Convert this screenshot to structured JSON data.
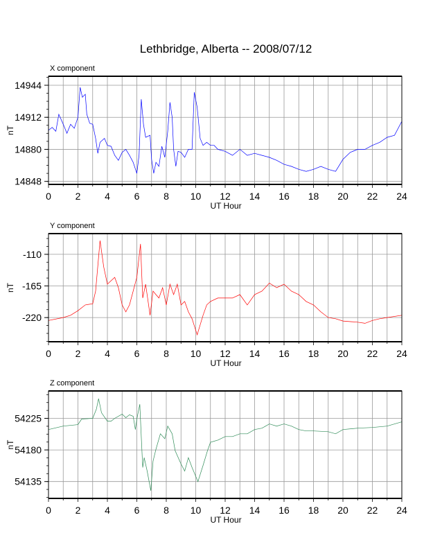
{
  "title": "Lethbridge, Alberta -- 2008/07/12",
  "chart_data": [
    {
      "type": "line",
      "title": "X component",
      "xlabel": "UT Hour",
      "ylabel": "nT",
      "xlim": [
        0,
        24
      ],
      "ylim": [
        14845,
        14953
      ],
      "xticks": [
        0,
        2,
        4,
        6,
        8,
        10,
        12,
        14,
        16,
        18,
        20,
        22,
        24
      ],
      "yticks": [
        14848,
        14880,
        14912,
        14944
      ],
      "grid": true,
      "color": "#0000ff",
      "x": [
        0,
        0.25,
        0.5,
        0.7,
        1.0,
        1.25,
        1.5,
        1.75,
        2.0,
        2.15,
        2.3,
        2.5,
        2.6,
        2.8,
        3.0,
        3.2,
        3.35,
        3.5,
        3.8,
        4.0,
        4.25,
        4.5,
        4.75,
        5.0,
        5.25,
        5.5,
        5.75,
        6.0,
        6.15,
        6.3,
        6.45,
        6.6,
        6.9,
        7.0,
        7.15,
        7.3,
        7.5,
        7.7,
        7.9,
        8.1,
        8.25,
        8.4,
        8.5,
        8.65,
        8.8,
        9.0,
        9.25,
        9.5,
        9.75,
        9.9,
        10.1,
        10.3,
        10.5,
        10.75,
        11.0,
        11.25,
        11.5,
        12,
        12.5,
        13,
        13.5,
        14,
        14.5,
        15,
        15.5,
        16,
        16.5,
        17,
        17.5,
        18,
        18.5,
        19,
        19.5,
        20,
        20.5,
        21,
        21.5,
        22,
        22.5,
        23,
        23.5,
        24
      ],
      "y": [
        14899,
        14902,
        14898,
        14915,
        14905,
        14896,
        14905,
        14901,
        14912,
        14942,
        14932,
        14935,
        14915,
        14906,
        14905,
        14891,
        14876,
        14887,
        14891,
        14884,
        14883,
        14874,
        14869,
        14877,
        14880,
        14874,
        14867,
        14856,
        14874,
        14930,
        14905,
        14892,
        14894,
        14870,
        14856,
        14867,
        14863,
        14883,
        14872,
        14898,
        14927,
        14912,
        14880,
        14863,
        14878,
        14877,
        14872,
        14880,
        14880,
        14937,
        14922,
        14891,
        14884,
        14887,
        14884,
        14884,
        14880,
        14878,
        14874,
        14880,
        14874,
        14876,
        14874,
        14872,
        14869,
        14865,
        14863,
        14860,
        14858,
        14860,
        14863,
        14860,
        14858,
        14870,
        14877,
        14880,
        14880,
        14884,
        14887,
        14892,
        14894,
        14908
      ]
    },
    {
      "type": "line",
      "title": "Y component",
      "xlabel": "UT Hour",
      "ylabel": "nT",
      "xlim": [
        0,
        24
      ],
      "ylim": [
        -262,
        -74
      ],
      "xticks": [
        0,
        2,
        4,
        6,
        8,
        10,
        12,
        14,
        16,
        18,
        20,
        22,
        24
      ],
      "yticks": [
        -220,
        -165,
        -110
      ],
      "grid": true,
      "color": "#ff0000",
      "x": [
        0,
        1,
        1.5,
        2,
        2.5,
        3.0,
        3.2,
        3.5,
        3.75,
        4.0,
        4.25,
        4.5,
        4.75,
        5.0,
        5.25,
        5.5,
        5.75,
        6.0,
        6.25,
        6.4,
        6.6,
        6.9,
        7.1,
        7.3,
        7.5,
        7.75,
        8.0,
        8.25,
        8.5,
        8.75,
        9.0,
        9.25,
        9.5,
        9.75,
        10.1,
        10.5,
        10.75,
        11.0,
        11.5,
        12,
        12.5,
        13,
        13.5,
        14,
        14.5,
        15,
        15.5,
        16,
        16.5,
        17,
        17.5,
        18,
        18.5,
        19,
        19.5,
        20,
        21,
        21.5,
        22,
        22.5,
        23,
        24
      ],
      "y": [
        -225,
        -220,
        -216,
        -208,
        -198,
        -196,
        -174,
        -86,
        -132,
        -162,
        -156,
        -150,
        -168,
        -198,
        -210,
        -198,
        -174,
        -150,
        -92,
        -186,
        -162,
        -216,
        -174,
        -180,
        -186,
        -168,
        -198,
        -162,
        -180,
        -162,
        -198,
        -192,
        -210,
        -222,
        -250,
        -216,
        -198,
        -192,
        -186,
        -186,
        -186,
        -180,
        -198,
        -180,
        -174,
        -160,
        -168,
        -162,
        -174,
        -180,
        -192,
        -198,
        -210,
        -220,
        -222,
        -226,
        -228,
        -230,
        -225,
        -222,
        -220,
        -216
      ]
    },
    {
      "type": "line",
      "title": "Z component",
      "xlabel": "UT Hour",
      "ylabel": "nT",
      "xlim": [
        0,
        24
      ],
      "ylim": [
        54111,
        54264
      ],
      "xticks": [
        0,
        2,
        4,
        6,
        8,
        10,
        12,
        14,
        16,
        18,
        20,
        22,
        24
      ],
      "yticks": [
        54135,
        54180,
        54225
      ],
      "grid": true,
      "color": "#2e8b57",
      "x": [
        0,
        1,
        2,
        2.25,
        3.0,
        3.25,
        3.4,
        3.6,
        4.0,
        4.25,
        4.5,
        5.0,
        5.25,
        5.5,
        5.75,
        5.9,
        6.0,
        6.2,
        6.3,
        6.4,
        6.5,
        6.7,
        6.95,
        7.1,
        7.3,
        7.6,
        7.9,
        8.1,
        8.4,
        8.6,
        9.0,
        9.25,
        9.5,
        9.75,
        10.15,
        10.5,
        10.8,
        11.0,
        11.5,
        12.0,
        12.5,
        13,
        13.5,
        14,
        14.5,
        15,
        15.5,
        16,
        16.5,
        17,
        17.5,
        18,
        19,
        19.5,
        20,
        21,
        22,
        23,
        24
      ],
      "y": [
        54209,
        54214,
        54216,
        54224,
        54225,
        54238,
        54253,
        54233,
        54221,
        54221,
        54225,
        54231,
        54226,
        54230,
        54228,
        54209,
        54224,
        54245,
        54199,
        54155,
        54169,
        54150,
        54122,
        54164,
        54181,
        54203,
        54196,
        54214,
        54203,
        54179,
        54160,
        54150,
        54169,
        54155,
        54135,
        54158,
        54179,
        54191,
        54194,
        54199,
        54199,
        54203,
        54203,
        54209,
        54211,
        54217,
        54214,
        54217,
        54214,
        54209,
        54207,
        54207,
        54206,
        54203,
        54209,
        54211,
        54212,
        54214,
        54220
      ]
    }
  ]
}
